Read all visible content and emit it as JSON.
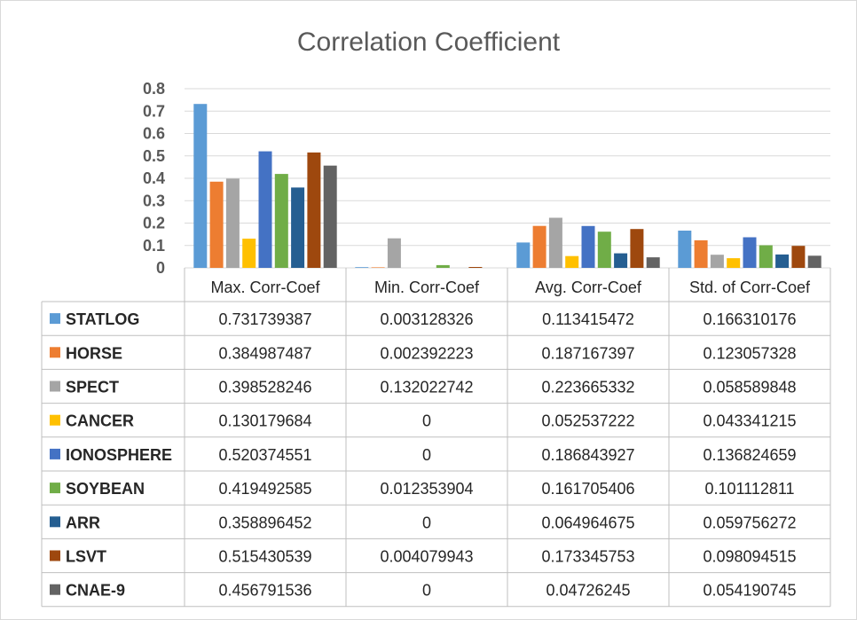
{
  "chart_data": {
    "type": "bar",
    "title": "Correlation Coefficient",
    "categories": [
      "Max. Corr-Coef",
      "Min. Corr-Coef",
      "Avg. Corr-Coef",
      "Std. of Corr-Coef"
    ],
    "ylim": [
      0,
      0.8
    ],
    "yticks": [
      "0",
      "0.1",
      "0.2",
      "0.3",
      "0.4",
      "0.5",
      "0.6",
      "0.7",
      "0.8"
    ],
    "grid": true,
    "legend": "data-table-left",
    "series": [
      {
        "name": "STATLOG",
        "color": "#5B9BD5",
        "values": [
          0.731739387,
          0.003128326,
          0.113415472,
          0.166310176
        ],
        "labels": [
          "0.731739387",
          "0.003128326",
          "0.113415472",
          "0.166310176"
        ]
      },
      {
        "name": "HORSE",
        "color": "#ED7D31",
        "values": [
          0.384987487,
          0.002392223,
          0.187167397,
          0.123057328
        ],
        "labels": [
          "0.384987487",
          "0.002392223",
          "0.187167397",
          "0.123057328"
        ]
      },
      {
        "name": "SPECT",
        "color": "#A5A5A5",
        "values": [
          0.398528246,
          0.132022742,
          0.223665332,
          0.058589848
        ],
        "labels": [
          "0.398528246",
          "0.132022742",
          "0.223665332",
          "0.058589848"
        ]
      },
      {
        "name": "CANCER",
        "color": "#FFC000",
        "values": [
          0.130179684,
          0,
          0.052537222,
          0.043341215
        ],
        "labels": [
          "0.130179684",
          "0",
          "0.052537222",
          "0.043341215"
        ]
      },
      {
        "name": "IONOSPHERE",
        "color": "#4472C4",
        "values": [
          0.520374551,
          0,
          0.186843927,
          0.136824659
        ],
        "labels": [
          "0.520374551",
          "0",
          "0.186843927",
          "0.136824659"
        ]
      },
      {
        "name": "SOYBEAN",
        "color": "#70AD47",
        "values": [
          0.419492585,
          0.012353904,
          0.161705406,
          0.101112811
        ],
        "labels": [
          "0.419492585",
          "0.012353904",
          "0.161705406",
          "0.101112811"
        ]
      },
      {
        "name": "ARR",
        "color": "#255E91",
        "values": [
          0.358896452,
          0,
          0.064964675,
          0.059756272
        ],
        "labels": [
          "0.358896452",
          "0",
          "0.064964675",
          "0.059756272"
        ]
      },
      {
        "name": "LSVT",
        "color": "#9E480E",
        "values": [
          0.515430539,
          0.004079943,
          0.173345753,
          0.098094515
        ],
        "labels": [
          "0.515430539",
          "0.004079943",
          "0.173345753",
          "0.098094515"
        ]
      },
      {
        "name": "CNAE-9",
        "color": "#636363",
        "values": [
          0.456791536,
          0,
          0.04726245,
          0.054190745
        ],
        "labels": [
          "0.456791536",
          "0",
          "0.04726245",
          "0.054190745"
        ]
      }
    ]
  }
}
